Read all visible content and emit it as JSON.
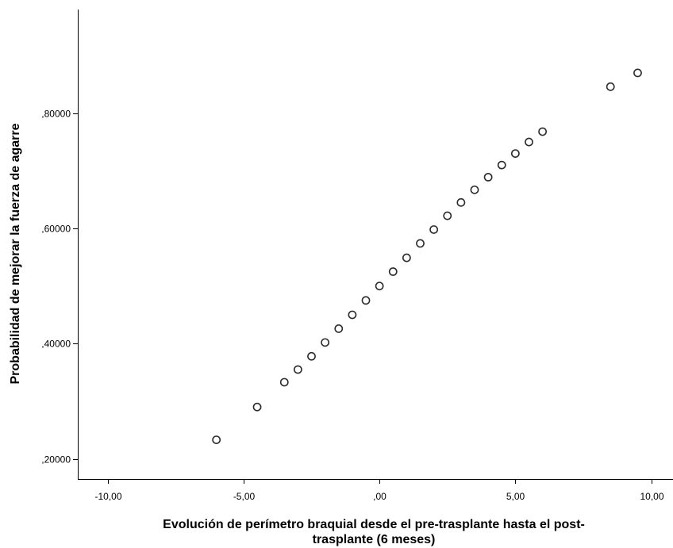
{
  "chart_data": {
    "type": "scatter",
    "title": "",
    "xlabel_lines": [
      "Evolución de perímetro braquial desde el pre-trasplante hasta el post-",
      "trasplante (6 meses)"
    ],
    "ylabel": "Probabilidad de mejorar la fuerza de agarre",
    "xlim": [
      -11.1,
      10.8
    ],
    "ylim": [
      0.165,
      0.98
    ],
    "x_ticks": [
      -10,
      -5,
      0,
      5,
      10
    ],
    "x_tick_labels": [
      "-10,00",
      "-5,00",
      ",00",
      "5,00",
      "10,00"
    ],
    "y_ticks": [
      0.2,
      0.4,
      0.6,
      0.8
    ],
    "y_tick_labels": [
      ",20000",
      ",40000",
      ",60000",
      ",80000"
    ],
    "grid": false,
    "legend": "none",
    "marker": "open-circle",
    "colors": {
      "marker_stroke": "#2b2b2b",
      "axis": "#000000",
      "background": "#ffffff"
    },
    "points": [
      {
        "x": -6.0,
        "y": 0.233
      },
      {
        "x": -4.5,
        "y": 0.29
      },
      {
        "x": -3.5,
        "y": 0.333
      },
      {
        "x": -3.0,
        "y": 0.355
      },
      {
        "x": -2.5,
        "y": 0.378
      },
      {
        "x": -2.0,
        "y": 0.402
      },
      {
        "x": -1.5,
        "y": 0.426
      },
      {
        "x": -1.0,
        "y": 0.45
      },
      {
        "x": -0.5,
        "y": 0.475
      },
      {
        "x": 0.0,
        "y": 0.5
      },
      {
        "x": 0.5,
        "y": 0.525
      },
      {
        "x": 1.0,
        "y": 0.549
      },
      {
        "x": 1.5,
        "y": 0.574
      },
      {
        "x": 2.0,
        "y": 0.598
      },
      {
        "x": 2.5,
        "y": 0.622
      },
      {
        "x": 3.0,
        "y": 0.645
      },
      {
        "x": 3.5,
        "y": 0.667
      },
      {
        "x": 4.0,
        "y": 0.689
      },
      {
        "x": 4.5,
        "y": 0.71
      },
      {
        "x": 5.0,
        "y": 0.73
      },
      {
        "x": 5.5,
        "y": 0.75
      },
      {
        "x": 6.0,
        "y": 0.768
      },
      {
        "x": 8.5,
        "y": 0.846
      },
      {
        "x": 9.5,
        "y": 0.87
      }
    ]
  }
}
